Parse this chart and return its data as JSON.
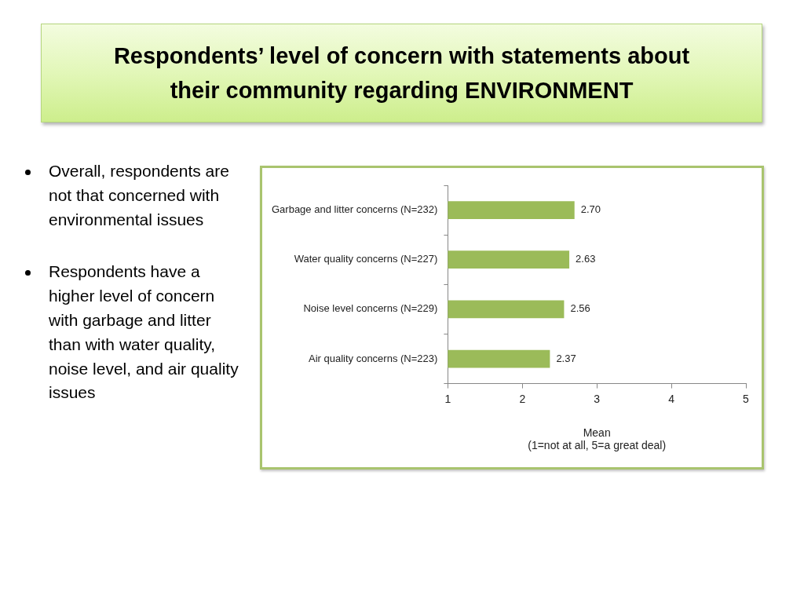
{
  "chart_data": {
    "type": "bar",
    "orientation": "horizontal",
    "title": "Respondents’ level of concern with statements about their community regarding ENVIRONMENT",
    "categories": [
      "Garbage and litter concerns (N=232)",
      "Water quality concerns (N=227)",
      "Noise level concerns (N=229)",
      "Air quality concerns (N=223)"
    ],
    "values": [
      2.7,
      2.63,
      2.56,
      2.37
    ],
    "color": "#9bbb59",
    "value_labels": [
      "2.70",
      "2.63",
      "2.56",
      "2.37"
    ],
    "xlim": [
      1,
      5
    ],
    "xticks": [
      1,
      2,
      3,
      4,
      5
    ],
    "xlabel": "Mean\n(1=not at all, 5=a great deal)",
    "grid": false,
    "annotations": [
      "Overall, respondents are not that concerned with environmental issues",
      "Respondents have a higher level of concern with garbage and litter than with water quality, noise level, and air quality issues"
    ]
  }
}
